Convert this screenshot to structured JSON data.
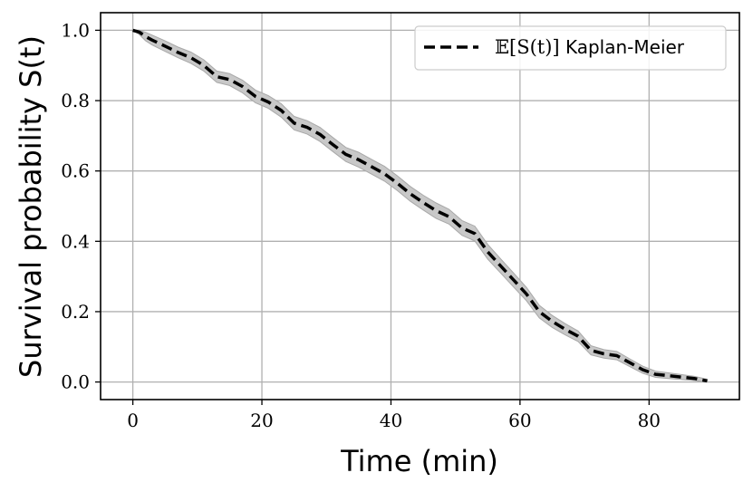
{
  "chart_data": {
    "type": "line",
    "xlabel": "Time (min)",
    "ylabel": "Survival probability S(t)",
    "xlim": [
      -5,
      94
    ],
    "ylim": [
      -0.05,
      1.05
    ],
    "xticks": [
      0,
      20,
      40,
      60,
      80
    ],
    "yticks": [
      0.0,
      0.2,
      0.4,
      0.6,
      0.8,
      1.0
    ],
    "xtick_labels": [
      "0",
      "20",
      "40",
      "60",
      "80"
    ],
    "ytick_labels": [
      "0.0",
      "0.2",
      "0.4",
      "0.6",
      "0.8",
      "1.0"
    ],
    "grid": true,
    "legend": {
      "position": "top-right",
      "math_label": "𝔼[S(t)]",
      "label_text": " Kaplan-Meier"
    },
    "colors": {
      "line": "#000000",
      "band": "#c8c8c8",
      "grid": "#b0b0b0"
    },
    "series": [
      {
        "name": "𝔼[S(t)] Kaplan-Meier",
        "style": "dashed",
        "x": [
          0,
          1,
          2,
          3,
          5,
          7,
          9,
          11,
          13,
          15,
          17,
          19,
          21,
          23,
          25,
          27,
          29,
          31,
          33,
          35,
          37,
          39,
          41,
          43,
          45,
          47,
          49,
          51,
          53,
          55,
          57,
          59,
          61,
          63,
          65,
          67,
          69,
          71,
          73,
          75,
          77,
          79,
          81,
          83,
          85,
          87,
          89
        ],
        "y": [
          1.0,
          0.995,
          0.982,
          0.972,
          0.955,
          0.937,
          0.922,
          0.9,
          0.868,
          0.86,
          0.84,
          0.812,
          0.796,
          0.772,
          0.736,
          0.724,
          0.704,
          0.675,
          0.647,
          0.632,
          0.612,
          0.592,
          0.565,
          0.535,
          0.51,
          0.487,
          0.47,
          0.438,
          0.422,
          0.37,
          0.33,
          0.29,
          0.25,
          0.2,
          0.172,
          0.15,
          0.13,
          0.09,
          0.08,
          0.075,
          0.055,
          0.035,
          0.022,
          0.018,
          0.014,
          0.01,
          0.003
        ],
        "band_lower": [
          1.0,
          0.988,
          0.97,
          0.958,
          0.94,
          0.922,
          0.906,
          0.884,
          0.852,
          0.843,
          0.822,
          0.794,
          0.778,
          0.753,
          0.717,
          0.705,
          0.684,
          0.655,
          0.627,
          0.611,
          0.591,
          0.571,
          0.544,
          0.514,
          0.489,
          0.465,
          0.449,
          0.417,
          0.401,
          0.349,
          0.31,
          0.27,
          0.231,
          0.182,
          0.155,
          0.134,
          0.115,
          0.077,
          0.068,
          0.063,
          0.044,
          0.025,
          0.013,
          0.01,
          0.007,
          0.004,
          0.0
        ],
        "band_upper": [
          1.0,
          1.0,
          0.994,
          0.986,
          0.97,
          0.952,
          0.938,
          0.916,
          0.884,
          0.877,
          0.858,
          0.83,
          0.814,
          0.791,
          0.755,
          0.743,
          0.724,
          0.695,
          0.667,
          0.653,
          0.633,
          0.613,
          0.586,
          0.556,
          0.531,
          0.509,
          0.491,
          0.459,
          0.443,
          0.391,
          0.35,
          0.31,
          0.269,
          0.218,
          0.189,
          0.166,
          0.145,
          0.103,
          0.092,
          0.087,
          0.066,
          0.045,
          0.031,
          0.026,
          0.021,
          0.016,
          0.008
        ]
      }
    ]
  }
}
